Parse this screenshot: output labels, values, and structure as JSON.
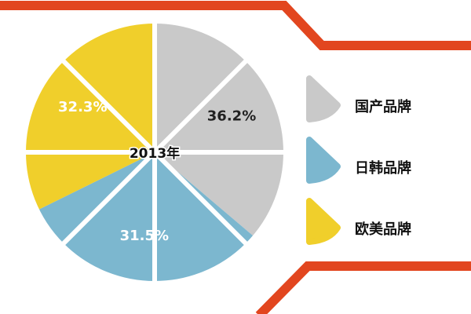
{
  "chart_data": {
    "type": "pie",
    "title": "2013年",
    "categories": [
      "国产品牌",
      "日韩品牌",
      "欧美品牌"
    ],
    "values": [
      36.2,
      31.5,
      32.3
    ],
    "value_labels": [
      "36.2%",
      "31.5%",
      "32.3%"
    ],
    "colors": [
      "#c9c9c9",
      "#7cb7cf",
      "#f0cf2b"
    ]
  }
}
